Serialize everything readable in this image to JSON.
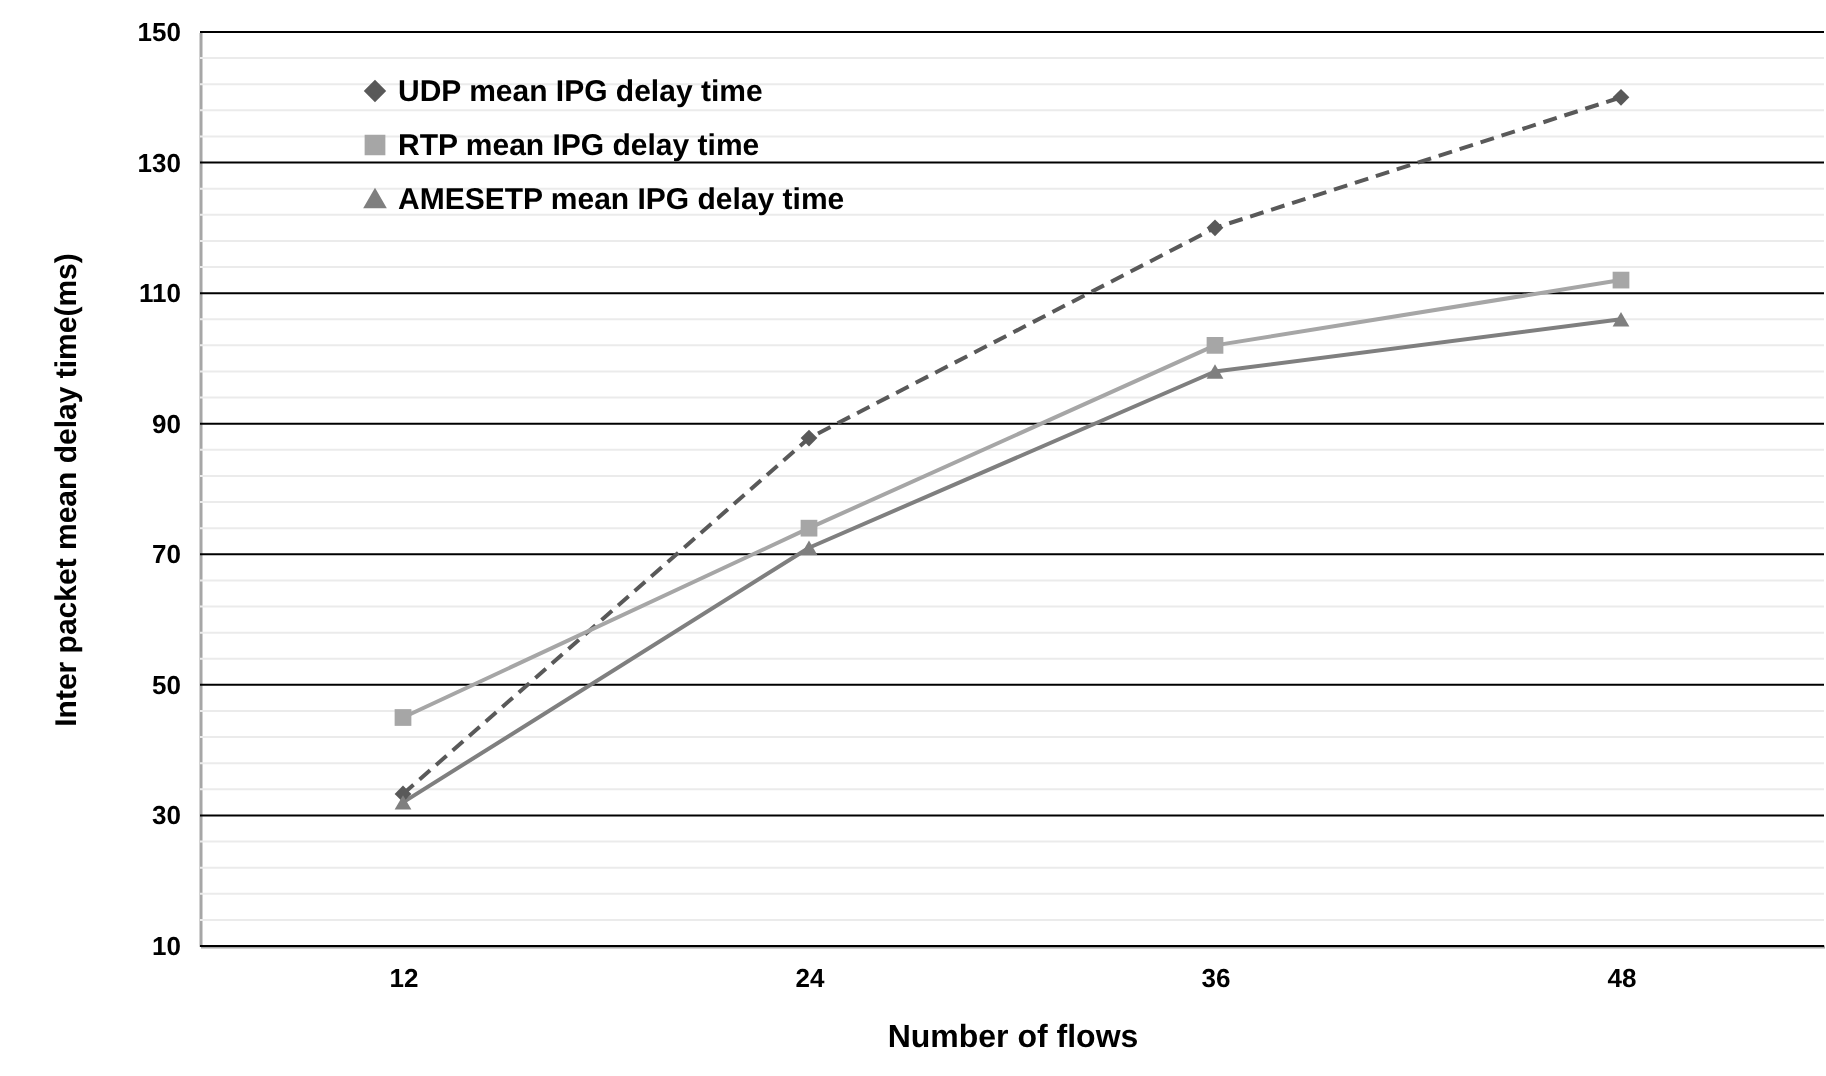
{
  "chart_data": {
    "type": "line",
    "xlabel": "Number of flows",
    "ylabel": "Inter packet mean delay time(ms)",
    "categories": [
      "12",
      "24",
      "36",
      "48"
    ],
    "series": [
      {
        "name": "UDP mean IPG delay time",
        "color": "#595959",
        "line_style": "dashed",
        "marker": "diamond",
        "values": [
          33.3,
          87.8,
          120,
          140
        ]
      },
      {
        "name": "RTP mean IPG delay time",
        "color": "#a6a6a6",
        "line_style": "solid",
        "marker": "square",
        "values": [
          45,
          74,
          102,
          112
        ]
      },
      {
        "name": "AMESETP mean IPG delay time",
        "color": "#7f7f7f",
        "line_style": "solid",
        "marker": "triangle",
        "values": [
          32,
          71,
          98,
          106
        ]
      }
    ],
    "ylim": [
      10,
      150
    ],
    "yticks": [
      10,
      {
        "value": 14,
        "label": null
      },
      {
        "value": 18,
        "label": null
      },
      {
        "value": 22,
        "label": null
      },
      {
        "value": 26,
        "label": null
      },
      30,
      {
        "value": 34,
        "label": null
      },
      {
        "value": 38,
        "label": null
      },
      {
        "value": 42,
        "label": null
      },
      {
        "value": 46,
        "label": null
      },
      50,
      {
        "value": 54,
        "label": null
      },
      {
        "value": 58,
        "label": null
      },
      {
        "value": 62,
        "label": null
      },
      {
        "value": 66,
        "label": null
      },
      70,
      {
        "value": 74,
        "label": null
      },
      {
        "value": 78,
        "label": null
      },
      {
        "value": 82,
        "label": null
      },
      {
        "value": 86,
        "label": null
      },
      90,
      {
        "value": 94,
        "label": null
      },
      {
        "value": 98,
        "label": null
      },
      {
        "value": 102,
        "label": null
      },
      {
        "value": 106,
        "label": null
      },
      110,
      {
        "value": 114,
        "label": null
      },
      {
        "value": 118,
        "label": null
      },
      {
        "value": 122,
        "label": null
      },
      {
        "value": 126,
        "label": null
      },
      130,
      {
        "value": 134,
        "label": null
      },
      {
        "value": 138,
        "label": null
      },
      {
        "value": 142,
        "label": null
      },
      {
        "value": 146,
        "label": null
      },
      150
    ],
    "grid": "y",
    "legend": "top left"
  }
}
